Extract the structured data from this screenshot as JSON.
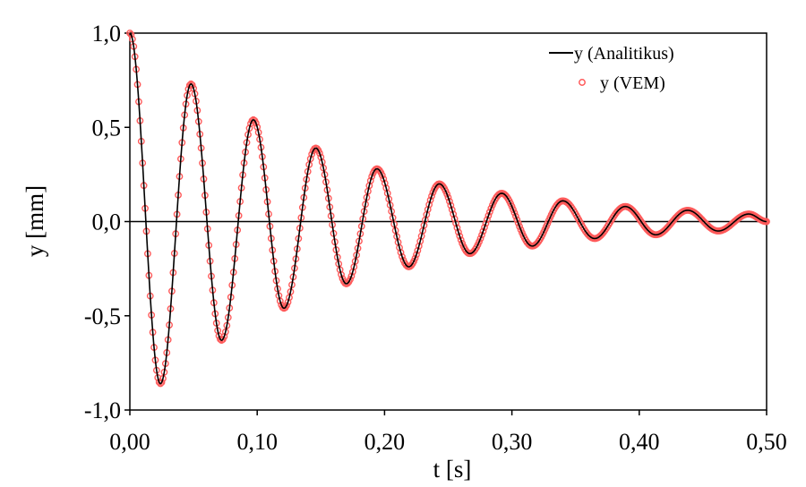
{
  "chart_data": {
    "type": "line",
    "xlabel": "t [s]",
    "ylabel": "y [mm]",
    "xlim": [
      0,
      0.5
    ],
    "ylim": [
      -1.0,
      1.0
    ],
    "x_ticks": [
      0,
      0.1,
      0.2,
      0.3,
      0.4,
      0.5
    ],
    "x_tick_labels": [
      "0,00",
      "0,10",
      "0,20",
      "0,30",
      "0,40",
      "0,50"
    ],
    "y_ticks": [
      1.0,
      0.5,
      0.0,
      -0.5,
      -1.0
    ],
    "y_tick_labels": [
      "1,0",
      "0,5",
      "0,0",
      "-0,5",
      "-1,0"
    ],
    "grid": false,
    "zero_line": true,
    "legend_position": "top-right",
    "series": [
      {
        "name": "y (Analitikus)",
        "style": "line",
        "color": "#000000",
        "x": [
          0.0,
          0.024,
          0.048,
          0.072,
          0.097,
          0.121,
          0.146,
          0.17,
          0.194,
          0.219,
          0.243,
          0.267,
          0.292,
          0.316,
          0.34,
          0.365,
          0.389,
          0.413,
          0.438,
          0.462,
          0.486,
          0.5
        ],
        "y": [
          1.0,
          -0.86,
          0.73,
          -0.63,
          0.54,
          -0.46,
          0.39,
          -0.33,
          0.28,
          -0.24,
          0.2,
          -0.17,
          0.15,
          -0.13,
          0.11,
          -0.09,
          0.08,
          -0.07,
          0.06,
          -0.05,
          0.04,
          0.0
        ]
      },
      {
        "name": "y (VEM)",
        "style": "markers",
        "color": "#ff5a5a",
        "x": [
          0.0,
          0.024,
          0.048,
          0.072,
          0.097,
          0.121,
          0.146,
          0.17,
          0.194,
          0.219,
          0.243,
          0.267,
          0.292,
          0.316,
          0.34,
          0.365,
          0.389,
          0.413,
          0.438,
          0.462,
          0.486,
          0.5
        ],
        "y": [
          1.0,
          -0.86,
          0.73,
          -0.63,
          0.54,
          -0.46,
          0.39,
          -0.33,
          0.28,
          -0.24,
          0.2,
          -0.17,
          0.15,
          -0.13,
          0.11,
          -0.09,
          0.08,
          -0.07,
          0.06,
          -0.05,
          0.04,
          0.0
        ]
      }
    ]
  }
}
